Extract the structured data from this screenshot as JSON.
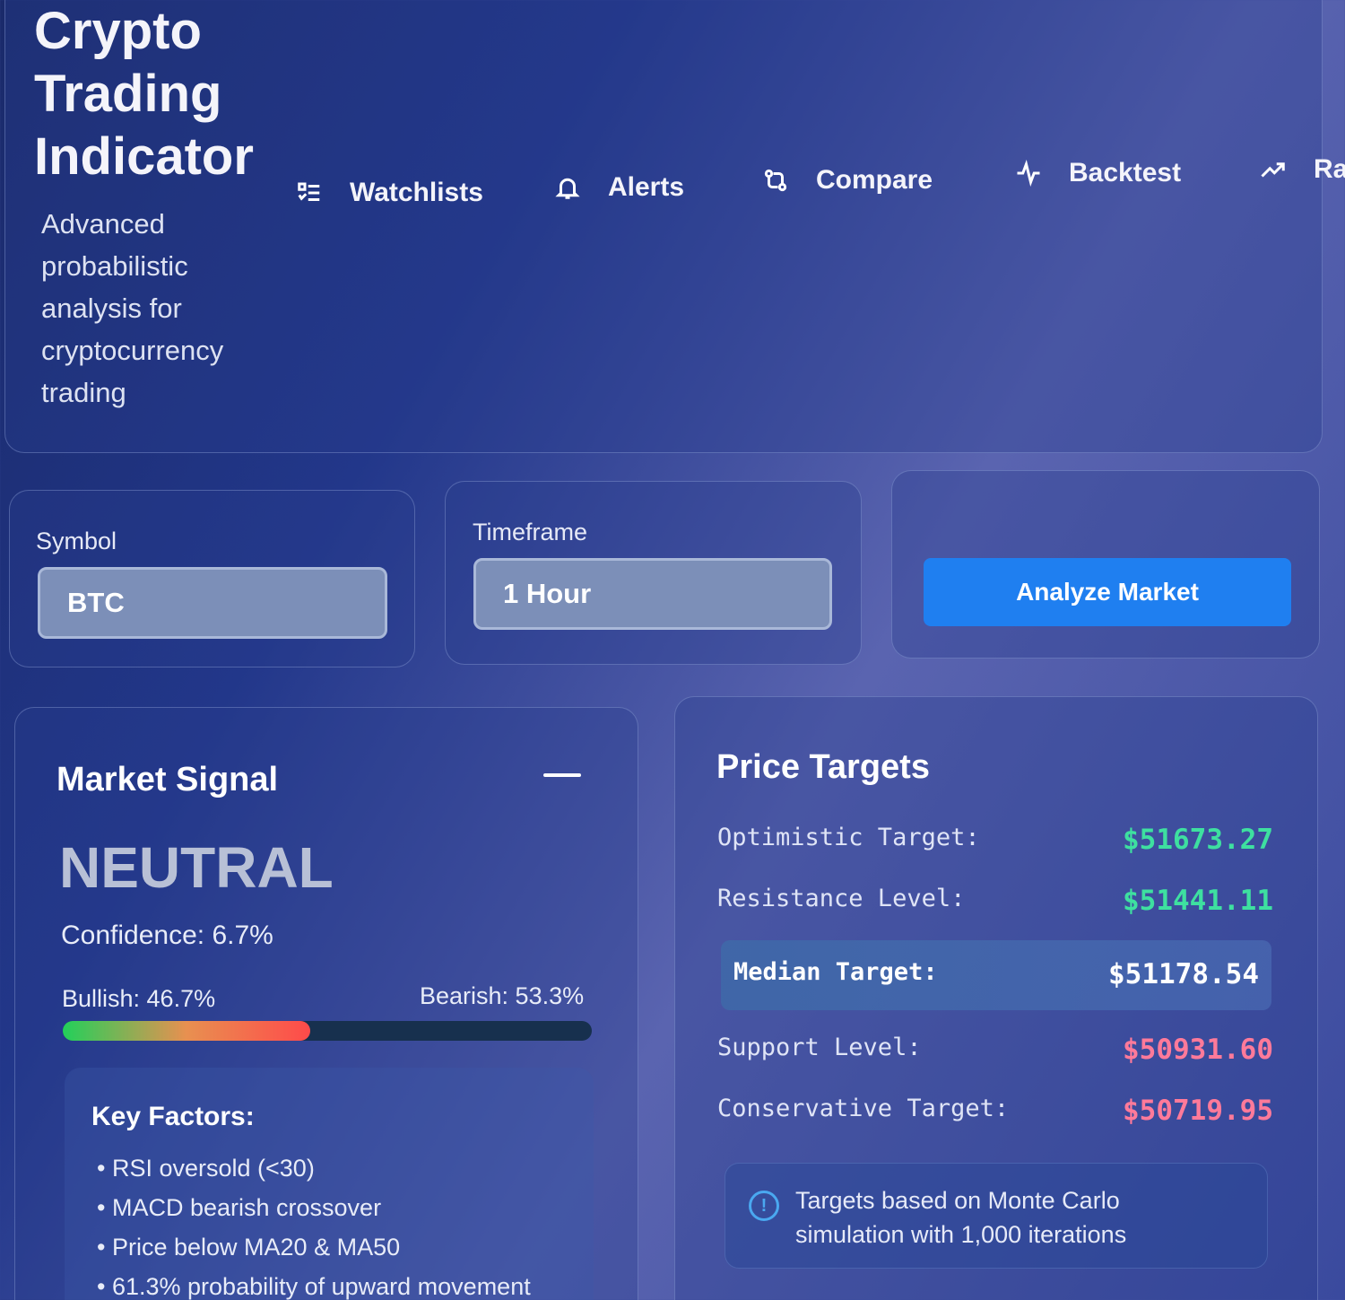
{
  "header": {
    "title": "Crypto Trading Indicator",
    "subtitle": "Advanced probabilistic analysis for cryptocurrency trading",
    "nav": [
      {
        "label": "Watchlists",
        "icon": "list-icon"
      },
      {
        "label": "Alerts",
        "icon": "bell-icon"
      },
      {
        "label": "Compare",
        "icon": "compare-icon"
      },
      {
        "label": "Backtest",
        "icon": "activity-icon"
      },
      {
        "label": "Ra",
        "icon": "trending-up-icon"
      }
    ]
  },
  "controls": {
    "symbol_label": "Symbol",
    "symbol_value": "BTC",
    "timeframe_label": "Timeframe",
    "timeframe_value": "1 Hour",
    "analyze_label": "Analyze Market"
  },
  "signal": {
    "title": "Market Signal",
    "value": "NEUTRAL",
    "confidence": "Confidence: 6.7%",
    "bullish": "Bullish: 46.7%",
    "bearish": "Bearish: 53.3%",
    "bullish_fraction": 0.467,
    "factors_title": "Key Factors:",
    "factors": [
      "RSI oversold (<30)",
      "MACD bearish crossover",
      "Price below MA20 & MA50",
      "61.3% probability of upward movement"
    ]
  },
  "targets": {
    "title": "Price Targets",
    "rows": [
      {
        "label": "Optimistic Target:",
        "value": "$51673.27",
        "color": "#3ee0a0"
      },
      {
        "label": "Resistance Level:",
        "value": "$51441.11",
        "color": "#3ee0a0"
      },
      {
        "label": "Median Target:",
        "value": "$51178.54",
        "color": "#ffffff"
      },
      {
        "label": "Support Level:",
        "value": "$50931.60",
        "color": "#ff7a9a"
      },
      {
        "label": "Conservative Target:",
        "value": "$50719.95",
        "color": "#ff7a9a"
      }
    ],
    "note": "Targets based on Monte Carlo simulation with 1,000 iterations"
  }
}
